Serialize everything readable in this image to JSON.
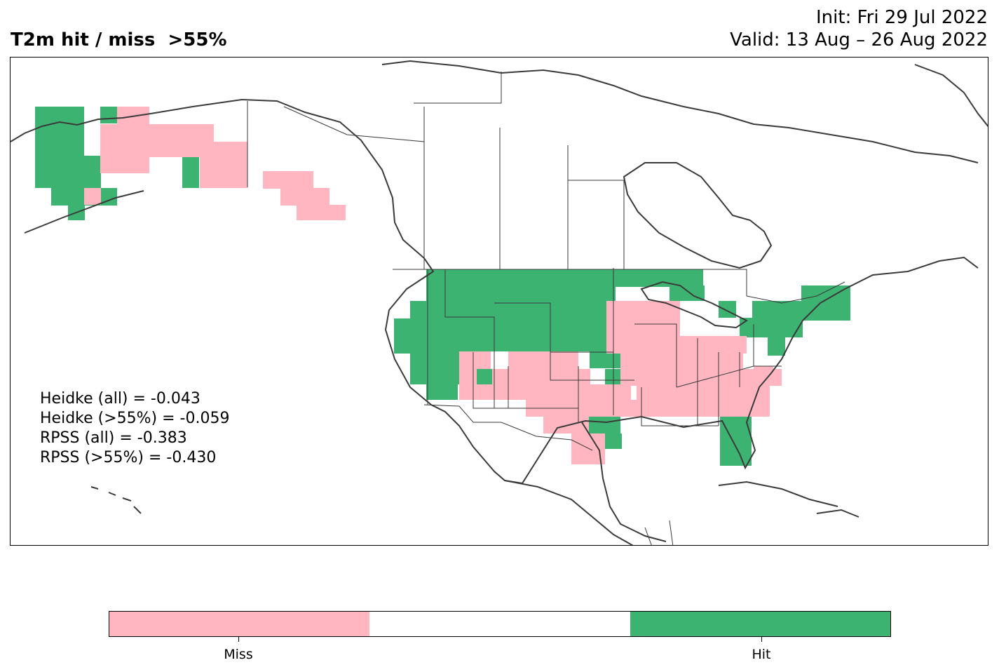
{
  "header": {
    "title": "T2m hit / miss  >55%",
    "init": "Init: Fri 29 Jul 2022",
    "valid": "Valid: 13 Aug – 26 Aug 2022"
  },
  "stats": [
    "Heidke (all) = -0.043",
    "Heidke (>55%) = -0.059",
    "RPSS (all) = -0.383",
    "RPSS (>55%) = -0.430"
  ],
  "colors": {
    "miss": "#ffb6c1",
    "neutral": "#ffffff",
    "hit": "#3cb371",
    "coastline": "#3a3a3a"
  },
  "legend": {
    "labels": [
      "Miss",
      "Hit"
    ],
    "colors": [
      "#ffb6c1",
      "#ffffff",
      "#3cb371"
    ]
  },
  "map": {
    "region": "North America",
    "projection": "Lambert conformal"
  }
}
